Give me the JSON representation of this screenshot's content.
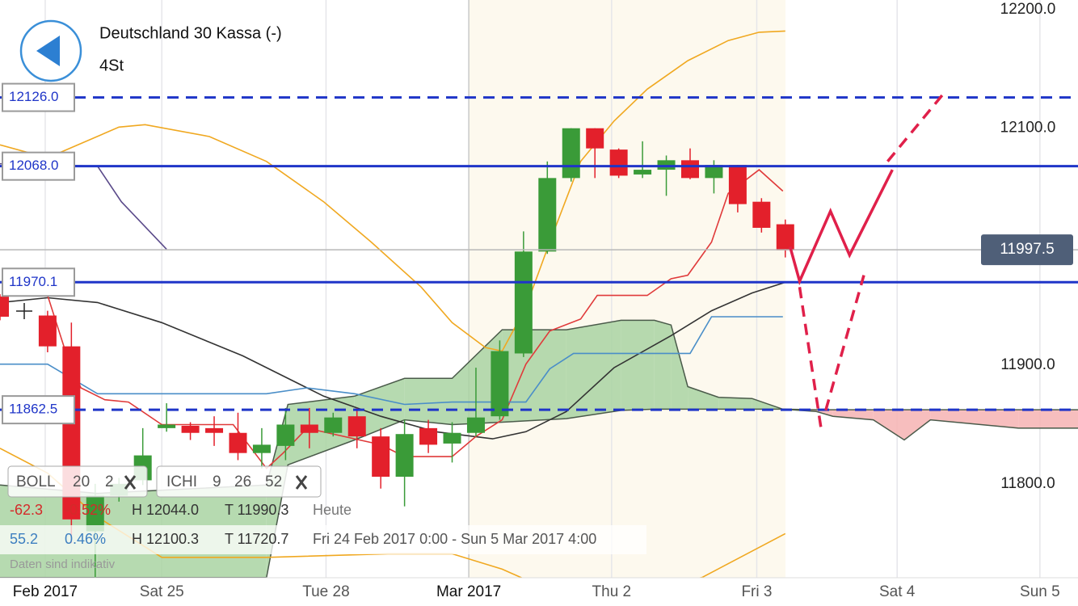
{
  "chart_data": {
    "type": "candlestick",
    "title": "Deutschland 30 Kassa (-)",
    "subtitle": "4St",
    "x": [
      0,
      2,
      3,
      4,
      5,
      6,
      7,
      8,
      9,
      10,
      11,
      12,
      13,
      14,
      15,
      16,
      17,
      18,
      19,
      20,
      21,
      22,
      23,
      24,
      25,
      26,
      27,
      28,
      29,
      30,
      31,
      32,
      33
    ],
    "open": [
      11958,
      11942,
      11916,
      11760,
      11790,
      11803,
      11847,
      11849,
      11847,
      11843,
      11826,
      11832,
      11850,
      11843,
      11857,
      11840,
      11806,
      11847,
      11834,
      11843,
      11857,
      11910,
      11996,
      12058,
      12100,
      12082,
      12061,
      12065,
      12073,
      12058,
      12069,
      12038,
      12019
    ],
    "high": [
      11960,
      11946,
      11936,
      11800,
      11805,
      11847,
      11868,
      11852,
      11857,
      11860,
      11847,
      11864,
      11864,
      11860,
      11864,
      11847,
      11854,
      11854,
      11852,
      11898,
      11921,
      12013,
      12072,
      12100,
      12100,
      12083,
      12089,
      12077,
      12083,
      12073,
      12069,
      12041,
      12023
    ],
    "low": [
      11938,
      11911,
      11750,
      11721,
      11785,
      11799,
      11844,
      11837,
      11832,
      11820,
      11813,
      11820,
      11830,
      11840,
      11830,
      11796,
      11781,
      11826,
      11818,
      11840,
      11854,
      11907,
      11994,
      12055,
      12058,
      12058,
      12058,
      12043,
      12057,
      12045,
      12029,
      12012,
      11991
    ],
    "close": [
      11941,
      11916,
      11770,
      11790,
      11800,
      11824,
      11850,
      11843,
      11843,
      11826,
      11833,
      11850,
      11843,
      11856,
      11840,
      11806,
      11842,
      11833,
      11843,
      11856,
      11912,
      11996,
      12058,
      12100,
      12083,
      12060,
      12065,
      12073,
      12058,
      12069,
      12036,
      12016,
      11997
    ],
    "up_color": "#3a9b38",
    "down_color": "#e3202b",
    "xlim": [
      0,
      45.3
    ],
    "ylim": [
      11720.8,
      12208.2
    ],
    "yticks": [
      {
        "value": 12200,
        "label": "12200.0"
      },
      {
        "value": 12100,
        "label": "12100.0"
      },
      {
        "value": 11900,
        "label": "11900.0"
      },
      {
        "value": 11800,
        "label": "11800.0"
      }
    ],
    "xticks": [
      {
        "value": 1.9,
        "label": "Feb 2017"
      },
      {
        "value": 6.8,
        "label": "Sat 25"
      },
      {
        "value": 13.7,
        "label": "Tue 28"
      },
      {
        "value": 19.7,
        "label": "Mar 2017"
      },
      {
        "value": 25.7,
        "label": "Thu 2"
      },
      {
        "value": 31.8,
        "label": "Fri 3"
      },
      {
        "value": 37.7,
        "label": "Sat 4"
      },
      {
        "value": 43.7,
        "label": "Sun 5"
      }
    ],
    "grid": true,
    "levels": [
      {
        "value": 12126,
        "label": "12126.0",
        "dash": true,
        "color": "#1f35c8"
      },
      {
        "value": 12068,
        "label": "12068.0",
        "dash": false,
        "color": "#1f35c8"
      },
      {
        "value": 11970.1,
        "label": "11970.1",
        "dash": false,
        "color": "#1f35c8"
      },
      {
        "value": 11862.5,
        "label": "11862.5",
        "dash": true,
        "color": "#1f35c8"
      }
    ],
    "last_price": {
      "value": 11997.5,
      "label": "11997.5"
    },
    "indicators": [
      {
        "color": "#f0a820",
        "x": [
          0,
          2,
          5,
          6.1,
          8.8,
          11.2,
          13.6,
          15.6,
          17.7,
          19,
          20.4,
          21.1,
          22.1,
          23.1,
          24.4,
          25.8,
          27.2,
          28.9,
          30.6,
          31.9,
          33
        ],
        "values": [
          12086,
          12075,
          12101,
          12103,
          12093,
          12072,
          12038,
          12004,
          11966,
          11936,
          11915,
          11912,
          11949,
          12004,
          12072,
          12106,
          12133,
          12157,
          12174,
          12181,
          12182
        ]
      },
      {
        "color": "#f0a820",
        "x": [
          0,
          2,
          4.1,
          6.8,
          11.2,
          16.3,
          19,
          21.1,
          23.8,
          24.4,
          29.5,
          33
        ],
        "values": [
          11830,
          11809,
          11772,
          11738,
          11738,
          11741,
          11741,
          11728,
          11704,
          11700,
          11721,
          11758
        ]
      },
      {
        "color": "#333333",
        "x": [
          0,
          2,
          4.1,
          6.8,
          10.2,
          13.6,
          16,
          18.3,
          20.7,
          22.1,
          23.8,
          25.8,
          28.2,
          29.9,
          31.6,
          33
        ],
        "values": [
          11953,
          11957,
          11953,
          11936,
          11908,
          11874,
          11857,
          11844,
          11838,
          11844,
          11861,
          11898,
          11925,
          11946,
          11961,
          11970
        ]
      },
      {
        "color": "#e03a3a",
        "x": [
          2,
          2.7,
          3.4,
          4.4,
          5.4,
          6.8,
          9.8,
          11.2,
          11.9,
          12.9,
          16,
          17,
          19,
          20,
          21.1,
          22.1,
          23.1,
          24.4,
          25.1,
          27.2,
          28.2,
          28.9,
          29.9,
          30.6,
          31.9,
          32.9
        ],
        "values": [
          11959,
          11915,
          11881,
          11871,
          11869,
          11850,
          11850,
          11813,
          11826,
          11847,
          11833,
          11823,
          11823,
          11840,
          11854,
          11901,
          11929,
          11939,
          11959,
          11959,
          11973,
          11976,
          12004,
          12045,
          12065,
          12047
        ]
      },
      {
        "color": "#4a8ec8",
        "x": [
          0,
          2,
          4.1,
          11.2,
          12.9,
          14.9,
          17,
          19,
          22.1,
          23.1,
          24.1,
          29,
          29.9,
          32.9
        ],
        "values": [
          11901,
          11901,
          11876,
          11876,
          11881,
          11876,
          11867,
          11869,
          11869,
          11897,
          11910,
          11910,
          11941,
          11941
        ]
      },
      {
        "color": "#5a4a8a",
        "x": [
          0,
          4.1,
          5.1,
          7
        ],
        "values": [
          12070,
          12068,
          12038,
          11998
        ]
      }
    ],
    "cloud": {
      "x": [
        0,
        4.1,
        11.2,
        12.1,
        14.9,
        17,
        19,
        21.1,
        23.8,
        26.1,
        27.5,
        28.2,
        28.9,
        30.2,
        31.6,
        32.9,
        34.3,
        35,
        36.7,
        38,
        39.1,
        42.8,
        45.3
      ],
      "span_a": [
        11799,
        11792,
        11799,
        11867,
        11874,
        11889,
        11889,
        11930,
        11930,
        11938,
        11938,
        11934,
        11882,
        11873,
        11872,
        11863,
        11861,
        11857,
        11854,
        11837,
        11854,
        11847,
        11847
      ],
      "span_b": [
        11721,
        11721,
        11721,
        11816,
        11837,
        11854,
        11850,
        11852,
        11855,
        11862,
        11863,
        11863,
        11863,
        11863,
        11863,
        11863,
        11862.5,
        11862.5,
        11862.5,
        11862.5,
        11862.5,
        11862.5,
        11862.5
      ],
      "up_color": "#a9d4a2",
      "down_color": "#f6b3b3",
      "edge_color": "#4a5a4a"
    },
    "forecast": [
      {
        "color": "#e0204a",
        "dash": false,
        "x": [
          33.2,
          33.6,
          34.9,
          35.7,
          37.5
        ],
        "values": [
          12000,
          11971,
          12030,
          11993,
          12065
        ]
      },
      {
        "color": "#e0204a",
        "dash": true,
        "x": [
          33.6,
          34.5
        ],
        "values": [
          11966,
          11847
        ]
      },
      {
        "color": "#e0204a",
        "dash": true,
        "x": [
          34.7,
          36.3
        ],
        "values": [
          11862,
          11976
        ]
      },
      {
        "color": "#e0204a",
        "dash": true,
        "x": [
          37.3,
          39.6
        ],
        "values": [
          12072,
          12128
        ]
      }
    ],
    "legend": [
      {
        "label": "BOLL",
        "params": [
          20,
          2
        ]
      },
      {
        "label": "ICHI",
        "params": [
          9,
          26,
          52
        ]
      }
    ]
  },
  "info": {
    "rows": [
      [
        "-62.3",
        "-0.52%",
        "H 12044.0",
        "T 11990.3",
        "Heute"
      ],
      [
        "55.2",
        "0.46%",
        "H 12100.3",
        "T 11720.7",
        "Fri 24 Feb 2017 0:00 - Sun 5 Mar 2017 4:00"
      ]
    ],
    "note": "Daten sind indikativ"
  }
}
